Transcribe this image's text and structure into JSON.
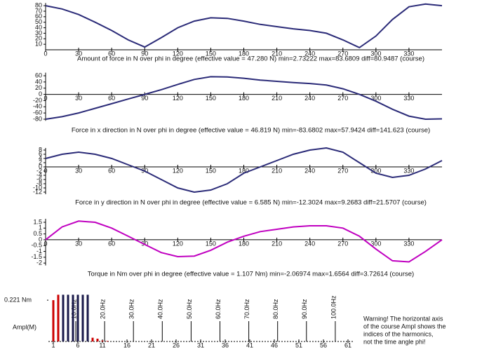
{
  "chart_data": [
    {
      "type": "line",
      "title": "Amount of force in N over phi in degree (effective value = 47.280 N)  min=2.73222  max=83.6809  diff=80.9487 (course)",
      "x": [
        0,
        15,
        30,
        45,
        60,
        75,
        90,
        105,
        120,
        135,
        150,
        165,
        180,
        195,
        210,
        225,
        240,
        255,
        270,
        285,
        300,
        315,
        330,
        345,
        360
      ],
      "values": [
        80,
        74,
        64,
        50,
        35,
        18,
        5,
        22,
        40,
        52,
        58,
        57,
        52,
        46,
        42,
        38,
        35,
        30,
        18,
        4,
        25,
        55,
        78,
        83,
        80
      ],
      "color": "#2b2b78",
      "xlim": [
        0,
        360
      ],
      "xticks": [
        0,
        30,
        60,
        90,
        120,
        150,
        180,
        210,
        240,
        270,
        300,
        330
      ],
      "ylim": [
        0,
        85
      ],
      "yticks": [
        10,
        20,
        30,
        40,
        50,
        60,
        70,
        80
      ]
    },
    {
      "type": "line",
      "title": "Force in x direction in N over phi in degree (effective value = 46.819 N)  min=-83.6802  max=57.9424  diff=141.623 (course)",
      "x": [
        0,
        15,
        30,
        45,
        60,
        75,
        90,
        105,
        120,
        135,
        150,
        165,
        180,
        195,
        210,
        225,
        240,
        255,
        270,
        285,
        300,
        315,
        330,
        345,
        360
      ],
      "values": [
        -80,
        -72,
        -60,
        -45,
        -30,
        -15,
        0,
        15,
        32,
        48,
        57,
        56,
        52,
        46,
        42,
        38,
        35,
        30,
        18,
        0,
        -22,
        -48,
        -70,
        -80,
        -79
      ],
      "color": "#2b2b78",
      "xlim": [
        0,
        360
      ],
      "xticks": [
        0,
        30,
        60,
        90,
        120,
        150,
        180,
        210,
        240,
        270,
        300,
        330
      ],
      "ylim": [
        -85,
        70
      ],
      "yticks": [
        -80,
        -60,
        -40,
        -20,
        0,
        20,
        40,
        60
      ]
    },
    {
      "type": "line",
      "title": "Force in y direction in N over phi in degree (effective value = 6.585 N)  min=-12.3024  max=9.2683  diff=21.5707 (course)",
      "x": [
        0,
        15,
        30,
        45,
        60,
        75,
        90,
        105,
        120,
        135,
        150,
        165,
        180,
        195,
        210,
        225,
        240,
        255,
        270,
        285,
        300,
        315,
        330,
        345,
        360
      ],
      "values": [
        4,
        6,
        7,
        6,
        4,
        1,
        -2,
        -6,
        -10,
        -12,
        -11,
        -8,
        -3,
        0,
        3,
        6,
        8,
        9,
        7,
        2,
        -3,
        -5,
        -4,
        -1,
        3
      ],
      "color": "#2b2b78",
      "xlim": [
        0,
        360
      ],
      "xticks": [
        0,
        30,
        60,
        90,
        120,
        150,
        180,
        210,
        240,
        270,
        300,
        330
      ],
      "ylim": [
        -13,
        9
      ],
      "yticks": [
        -12,
        -10,
        -8,
        -6,
        -4,
        -2,
        0,
        2,
        4,
        6,
        8
      ]
    },
    {
      "type": "line",
      "title": "Torque in Nm over phi in degree (effective value = 1.107 Nm)  min=-2.06974  max=1.6564  diff=3.72614  (course)",
      "x": [
        0,
        15,
        30,
        45,
        60,
        75,
        90,
        105,
        120,
        135,
        150,
        165,
        180,
        195,
        210,
        225,
        240,
        255,
        270,
        285,
        300,
        315,
        330,
        345,
        360
      ],
      "values": [
        0,
        1.1,
        1.6,
        1.5,
        1.0,
        0.3,
        -0.4,
        -1.1,
        -1.45,
        -1.4,
        -0.9,
        -0.2,
        0.3,
        0.7,
        0.9,
        1.1,
        1.2,
        1.2,
        1.0,
        0.3,
        -0.8,
        -1.8,
        -1.9,
        -1.0,
        0
      ],
      "color": "#c000c0",
      "xlim": [
        0,
        360
      ],
      "xticks": [
        0,
        30,
        60,
        90,
        120,
        150,
        180,
        210,
        240,
        270,
        300,
        330
      ],
      "ylim": [
        -2.2,
        1.8
      ],
      "yticks": [
        -2,
        -1.5,
        -1,
        -0.5,
        0,
        0.5,
        1,
        1.5
      ]
    },
    {
      "type": "bar",
      "ylabel": "Ampl(M)",
      "x": [
        1,
        2,
        3,
        4,
        5,
        6,
        7,
        8,
        9,
        10,
        11,
        12
      ],
      "values": [
        0.221,
        0.25,
        0.25,
        0.25,
        0.25,
        0.25,
        0.25,
        0.25,
        0.02,
        0.015,
        0.005,
        0.003
      ],
      "colors": [
        "#cc0000",
        "#cc0000",
        "#1a1a4a",
        "#1a1a4a",
        "#1a1a4a",
        "#1a1a4a",
        "#1a1a4a",
        "#1a1a4a",
        "#cc0000",
        "#cc0000",
        "#cc0000",
        "#cc0000"
      ],
      "xlim": [
        0,
        62
      ],
      "xticks": [
        1,
        6,
        11,
        16,
        21,
        26,
        31,
        36,
        41,
        46,
        51,
        56,
        61
      ],
      "ylim": [
        0,
        0.27
      ],
      "yticks": [
        {
          "value": 0.221,
          "label": "0.221 Nm"
        }
      ],
      "annotations": [
        "10.0Hz",
        "20.0Hz",
        "30.0Hz",
        "40.0Hz",
        "50.0Hz",
        "60.0Hz",
        "70.0Hz",
        "80.0Hz",
        "90.0Hz",
        "100.0Hz"
      ],
      "note": [
        "Warning! The horizontal axis",
        "of the course Ampl shows the",
        "indices of the harmonics,",
        "not the time angle phi!"
      ]
    }
  ]
}
